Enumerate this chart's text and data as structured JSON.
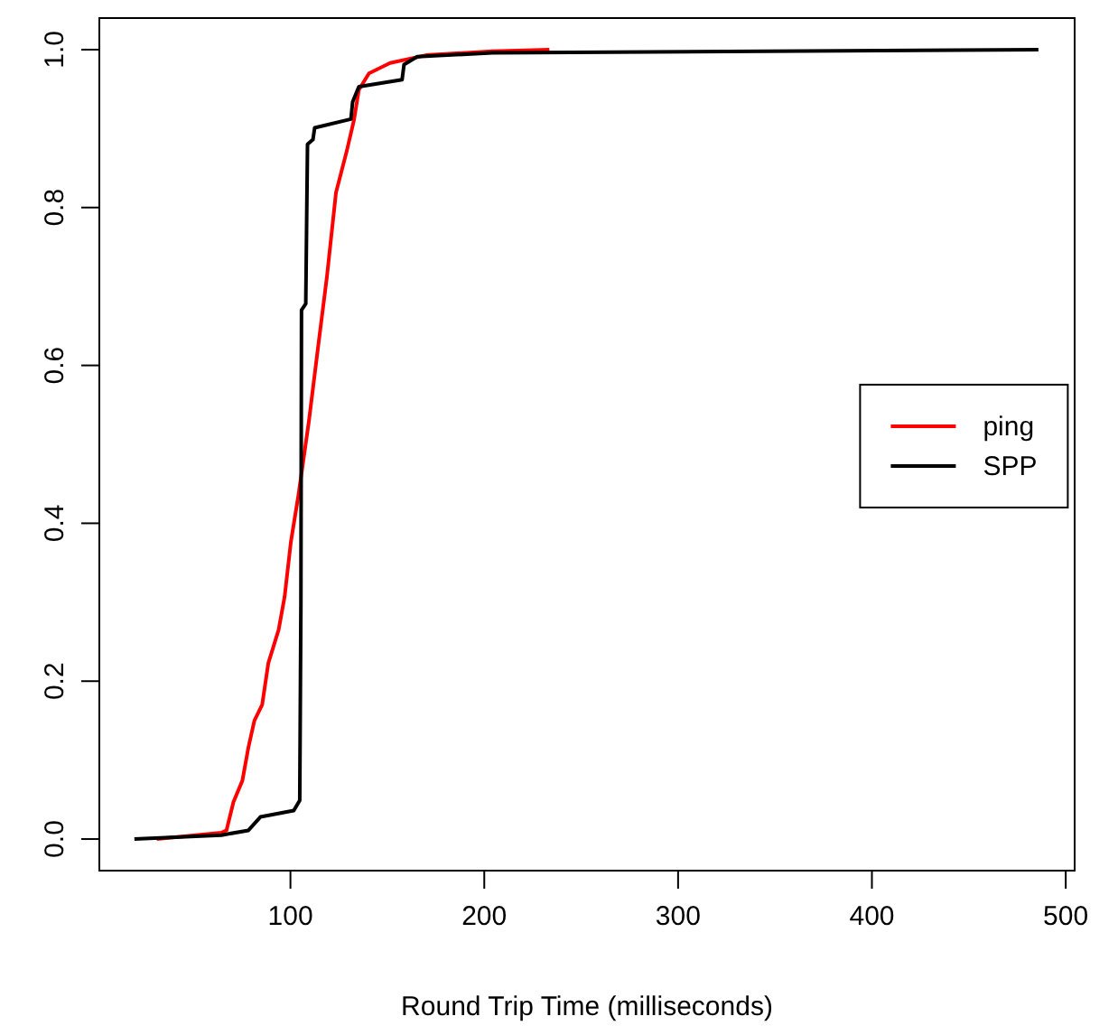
{
  "chart_data": {
    "type": "line",
    "xlabel": "Round Trip Time (milliseconds)",
    "xlim": [
      1.4,
      504.6
    ],
    "ylim": [
      -0.04,
      1.04
    ],
    "xticks": [
      100,
      200,
      300,
      400,
      500
    ],
    "yticks": [
      {
        "value": 0,
        "label": "0.0"
      },
      {
        "value": 0.2,
        "label": "0.2"
      },
      {
        "value": 0.4,
        "label": "0.4"
      },
      {
        "value": 0.6,
        "label": "0.6"
      },
      {
        "value": 0.8,
        "label": "0.8"
      },
      {
        "value": 1,
        "label": "1.0"
      }
    ],
    "legend": "right",
    "grid": false,
    "marker": "none",
    "line_style": "solid",
    "series": [
      {
        "name": "ping",
        "color": "#ff0000",
        "x": [
          31,
          64.4,
          67,
          70.6,
          75.2,
          78.3,
          81.4,
          85.4,
          88.6,
          93.9,
          97,
          100.2,
          104.2,
          109.5,
          114.1,
          118.8,
          123.5,
          129.1,
          132.8,
          135.3,
          140.5,
          151.4,
          170,
          204.1,
          233.6
        ],
        "values": [
          0,
          0.008,
          0.011,
          0.047,
          0.074,
          0.116,
          0.15,
          0.17,
          0.223,
          0.265,
          0.307,
          0.376,
          0.437,
          0.529,
          0.62,
          0.712,
          0.819,
          0.872,
          0.911,
          0.949,
          0.97,
          0.983,
          0.993,
          0.998,
          1
        ]
      },
      {
        "name": "SPP",
        "color": "#000000",
        "x": [
          19.5,
          64.4,
          78.3,
          84.5,
          101.7,
          104.8,
          105.4,
          105.7,
          107.9,
          108.8,
          111.6,
          112.5,
          131.2,
          132.1,
          135.3,
          157.6,
          158.6,
          165.4,
          204.1,
          485.9
        ],
        "values": [
          0,
          0.005,
          0.011,
          0.028,
          0.036,
          0.049,
          0.3,
          0.67,
          0.678,
          0.88,
          0.886,
          0.901,
          0.912,
          0.934,
          0.953,
          0.962,
          0.981,
          0.991,
          0.996,
          1
        ]
      }
    ]
  }
}
